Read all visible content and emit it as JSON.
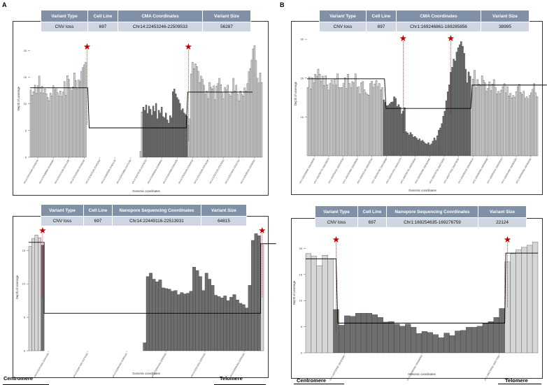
{
  "panel_labels": [
    "A",
    "B"
  ],
  "tables": [
    {
      "headers": [
        "Variant Type",
        "Cell Line",
        "CMA Coordinates",
        "Variant Size"
      ],
      "row": [
        "CNV loss",
        "697",
        "Chr14:22453246-22509533",
        "56287"
      ]
    },
    {
      "headers": [
        "Variant Type",
        "Cell Line",
        "CMA Coordinates",
        "Variant Size"
      ],
      "row": [
        "CNV loss",
        "697",
        "Chr1:169246861-169285856",
        "38995"
      ]
    },
    {
      "headers": [
        "Variant Type",
        "Cell Line",
        "Nanopore Sequencing Coordinates",
        "Variant Size"
      ],
      "row": [
        "CNV loss",
        "697",
        "Chr14:22449116-22513931",
        "64815"
      ]
    },
    {
      "headers": [
        "Variant Type",
        "Cell Line",
        "Nanopore Sequencing Coordinates",
        "Variant Size"
      ],
      "row": [
        "CNV loss",
        "697",
        "Chr1:169254635-169276759",
        "22124"
      ]
    }
  ],
  "arrows": {
    "centromere": "Centromere",
    "telomere": "Telomere"
  },
  "colors": {
    "light_bar": "#d6d6d6",
    "dark_bar": "#6e6e6e",
    "bar_stroke": "#3a3a3a",
    "header": "#8091a7",
    "cell": "#cfd6e2",
    "star": "#c00000",
    "line": "#000000"
  },
  "chart_data": [
    {
      "type": "bar",
      "ylabel": "Depth of coverage",
      "xlabel": "Genomic coordinates",
      "yticks": [
        0,
        5,
        10,
        15,
        20
      ],
      "ylim": [
        0,
        22
      ],
      "xtick_labels": [
        "chr14:22431940-22432040",
        "chr14:22436800-22436900",
        "chr14:22441230-22441330",
        "chr14:22445930-22446030",
        "chr14:22453100-22453200",
        "chr14:22462030-22462130",
        "chr14:22470680-22470780",
        "chr14:22478120-22478220",
        "chr14:22485500-22485600",
        "chr14:22494330-22494430",
        "chr14:22509420-22509520",
        "chr14:22516230-22516330",
        "chr14:22523100-22523200",
        "chr14:22531600-22531700",
        "chr14:22538100-22538200"
      ],
      "values": [
        12.6,
        11.6,
        12.3,
        13.5,
        12.0,
        13.4,
        15.2,
        12.1,
        13.3,
        12.0,
        12.8,
        11.9,
        11.2,
        10.6,
        12.0,
        11.5,
        13.4,
        12.6,
        13.0,
        12.1,
        11.5,
        12.4,
        11.4,
        12.2,
        14.2,
        11.6,
        15.3,
        14.6,
        13.0,
        12.5,
        13.2,
        15.8,
        14.4,
        12.8,
        14.5,
        14.2,
        16.1,
        16.8,
        17.3,
        17.8,
        0,
        0,
        0,
        0,
        0,
        0,
        0,
        0,
        0,
        0,
        0,
        0,
        0,
        0,
        0,
        0,
        0,
        0,
        0,
        0,
        0,
        0,
        0,
        0,
        0,
        0,
        0,
        0,
        0,
        0,
        0,
        0,
        0,
        0,
        0,
        0,
        0,
        0,
        1.1,
        8.5,
        9.4,
        8.8,
        9.8,
        8.2,
        9.6,
        9.0,
        7.9,
        9.6,
        8.6,
        10.1,
        7.2,
        8.8,
        8.3,
        9.4,
        7.6,
        7.4,
        8.3,
        7.0,
        6.4,
        7.8,
        7.4,
        12.3,
        12.8,
        11.9,
        11.2,
        10.8,
        10.1,
        8.8,
        9.1,
        8.3,
        8.0,
        7.7,
        6.0,
        7.2,
        15.6,
        17.8,
        16.6,
        17.5,
        17.0,
        16.1,
        14.0,
        15.2,
        14.6,
        13.5,
        11.8,
        12.4,
        11.0,
        14.0,
        13.1,
        12.8,
        13.4,
        10.8,
        13.3,
        13.8,
        14.8,
        13.6,
        12.2,
        10.9,
        13.1,
        12.6,
        13.5,
        11.8,
        11.5,
        12.1,
        14.8,
        12.4,
        13.5,
        11.8,
        10.6,
        12.4,
        11.8,
        11.5,
        13.0,
        12.4,
        13.8,
        16.0,
        16.6,
        18.2,
        20.3,
        20.9,
        18.1,
        14.8,
        13.9,
        15.8,
        14.0
      ],
      "dark_range": [
        80,
        111
      ],
      "segments": [
        {
          "x": [
            0,
            40
          ],
          "y": 13.0
        },
        {
          "x": [
            42,
            110
          ],
          "y": 5.5
        },
        {
          "x": [
            112,
            157
          ],
          "y": 12.2
        }
      ],
      "star_bars": [
        40,
        112
      ]
    },
    {
      "type": "bar",
      "ylabel": "Depth of coverage",
      "xlabel": "Genomic coordinates",
      "yticks": [
        10,
        20,
        30
      ],
      "ylim": [
        0,
        32
      ],
      "xtick_labels": [
        "chr1:169226830-169226930",
        "chr1:169230770-169230870",
        "chr1:169234410-169234510",
        "chr1:169237960-169238060",
        "chr1:169242140-169242240",
        "chr1:169246780-169246880",
        "chr1:169251370-169251470",
        "chr1:169256740-169256840",
        "chr1:169262460-169262560",
        "chr1:169270750-169270850",
        "chr1:169277950-169278050",
        "chr1:169285510-169285610",
        "chr1:169290580-169290680",
        "chr1:169295210-169295310",
        "chr1:169301960-169302060",
        "chr1:169306260-169306360"
      ],
      "values": [
        17.6,
        20.3,
        17.2,
        20.1,
        18.8,
        21.0,
        20.5,
        22.3,
        21.0,
        19.2,
        20.5,
        18.1,
        20.6,
        18.3,
        16.9,
        18.6,
        19.5,
        18.2,
        19.8,
        18.2,
        21.1,
        17.6,
        17.5,
        17.6,
        18.6,
        20.1,
        17.3,
        21.0,
        18.6,
        17.6,
        19.1,
        18.8,
        21.1,
        17.5,
        17.8,
        15.9,
        18.8,
        19.1,
        17.0,
        16.2,
        15.8,
        15.6,
        18.6,
        19.2,
        17.6,
        18.5,
        19.4,
        17.8,
        18.6,
        17.0,
        17.6,
        14.4,
        13.8,
        12.9,
        13.0,
        13.4,
        13.8,
        13.9,
        15.2,
        14.8,
        12.7,
        13.2,
        12.5,
        10.8,
        11.5,
        12.4,
        6.2,
        5.9,
        5.4,
        6.0,
        5.5,
        4.8,
        5.0,
        4.6,
        4.1,
        4.4,
        3.8,
        4.0,
        3.6,
        3.2,
        3.0,
        3.4,
        2.8,
        3.1,
        3.8,
        4.6,
        4.0,
        5.2,
        6.6,
        7.2,
        8.3,
        10.2,
        11.5,
        14.2,
        16.5,
        18.3,
        21.5,
        22.8,
        24.9,
        24.4,
        26.7,
        27.8,
        28.6,
        29.4,
        28.2,
        26.4,
        22.3,
        18.8,
        21.6,
        20.5,
        18.2,
        19.7,
        22.0,
        17.5,
        19.6,
        18.5,
        18.1,
        20.6,
        19.4,
        18.8,
        16.6,
        17.4,
        19.0,
        16.8,
        18.5,
        19.6,
        17.6,
        15.9,
        16.6,
        16.0,
        16.9,
        17.8,
        18.6,
        16.2,
        17.8,
        15.4,
        16.1,
        14.9,
        15.5,
        15.1,
        16.5,
        17.8,
        18.4,
        16.3,
        15.8,
        16.6,
        14.8,
        15.2,
        14.6,
        15.5,
        16.2,
        17.1,
        18.6,
        16.2,
        15.2
      ],
      "dark_range": [
        51,
        109
      ],
      "segments": [
        {
          "x": [
            0,
            51
          ],
          "y": 19.8
        },
        {
          "x": [
            53,
            109
          ],
          "y": 12.2
        },
        {
          "x": [
            111,
            160
          ],
          "y": 18.2
        }
      ],
      "star_bars": [
        64,
        96
      ]
    },
    {
      "type": "bar",
      "ylabel": "Depth of coverage",
      "xlabel": "Genomic coordinates",
      "yticks": [
        0,
        5,
        10,
        15
      ],
      "ylim": [
        0,
        19
      ],
      "xtick_labels": [
        "chr14:22441160-22444160",
        "chr14:22467160-22470160",
        "chr14:22480160-22483160",
        "chr14:22505160-22508160",
        "chr14:22521160-22524160",
        "chr14:22536160-22539160"
      ],
      "values": [
        15.6,
        16.8,
        17.3,
        16.9,
        15.8,
        0,
        0,
        0,
        0,
        0,
        0,
        0,
        0,
        0,
        0,
        0,
        0,
        0,
        0,
        0,
        0,
        0,
        0,
        0,
        0,
        0,
        0,
        0,
        0,
        0,
        0,
        0,
        0,
        0,
        0,
        0,
        0,
        1.2,
        11.1,
        11.6,
        10.7,
        10.3,
        10.6,
        9.4,
        9.3,
        9.2,
        8.9,
        9.0,
        8.4,
        8.7,
        8.5,
        8.6,
        8.9,
        12.5,
        12.0,
        11.1,
        9.0,
        11.6,
        10.7,
        9.8,
        8.3,
        8.1,
        7.9,
        8.2,
        7.5,
        8.0,
        8.4,
        7.6,
        7.1,
        6.9,
        6.4,
        9.8,
        16.5,
        17.5,
        17.2,
        15.8
      ],
      "dark_range": [
        4,
        74
      ],
      "segments": [
        {
          "x": [
            0,
            4
          ],
          "y": 16.2
        },
        {
          "x": [
            5,
            74
          ],
          "y": 5.6
        },
        {
          "x": [
            75,
            79
          ],
          "y": 16.0
        }
      ],
      "star_bars": [
        4,
        75
      ]
    },
    {
      "type": "bar",
      "ylabel": "Depth of coverage",
      "xlabel": "Genomic coordinates",
      "yticks": [
        0,
        5,
        10,
        15,
        20
      ],
      "ylim": [
        0,
        23
      ],
      "xtick_labels": [
        "chr1:169252500-169253000",
        "chr1:169265500-169266000",
        "chr1:169276500-169277000"
      ],
      "values": [
        19.0,
        18.5,
        16.7,
        18.7,
        18.0,
        8.3,
        5.3,
        7.1,
        7.0,
        7.6,
        7.6,
        7.6,
        7.3,
        6.8,
        5.9,
        6.0,
        5.5,
        5.1,
        5.5,
        4.9,
        3.7,
        4.1,
        3.9,
        3.5,
        2.9,
        3.8,
        3.3,
        4.2,
        4.3,
        4.9,
        4.9,
        5.1,
        5.7,
        6.0,
        6.8,
        8.5,
        17.4,
        19.0,
        19.7,
        20.2,
        20.6,
        21.2
      ],
      "dark_range": [
        5,
        35
      ],
      "segments": [
        {
          "x": [
            0,
            4.5
          ],
          "y": 18.0
        },
        {
          "x": [
            5.8,
            35
          ],
          "y": 5.7
        },
        {
          "x": [
            36.2,
            41
          ],
          "y": 19.1
        }
      ],
      "star_bars": [
        5,
        36
      ]
    }
  ]
}
